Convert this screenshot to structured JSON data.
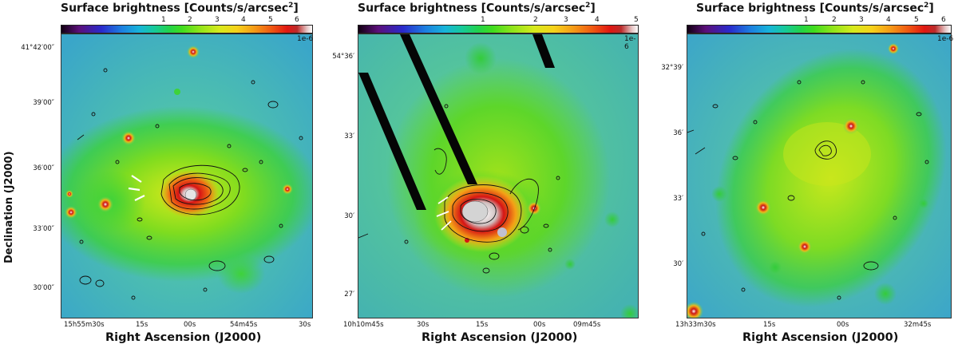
{
  "colorbar": {
    "title": "Surface brightness [Counts/s/arcsec",
    "title_sup": "2",
    "title_close": "]",
    "exponent": "1e-6",
    "colormap": "purple-blue-cyan-green-yellow-orange-red-white"
  },
  "panels": [
    {
      "colorbar_ticks": [
        "1",
        "2",
        "3",
        "4",
        "5",
        "6"
      ],
      "colorbar_max": 6,
      "y_ticks": [
        "41°42′00″",
        "39′00″",
        "36′00″",
        "33′00″",
        "30′00″"
      ],
      "x_ticks": [
        "15h55m30s",
        "15s",
        "00s",
        "54m45s",
        "30s"
      ],
      "x_title": "Right Ascension (J2000)",
      "y_title": "Declination (J2000)"
    },
    {
      "colorbar_ticks": [
        "1",
        "2",
        "3",
        "4",
        "5"
      ],
      "colorbar_max": 5,
      "y_ticks": [
        "54°36′",
        "33′",
        "30′",
        "27′"
      ],
      "x_ticks": [
        "10h10m45s",
        "30s",
        "15s",
        "00s",
        "09m45s"
      ],
      "x_title": "Right Ascension (J2000)"
    },
    {
      "colorbar_ticks": [
        "1",
        "2",
        "3",
        "4",
        "5",
        "6"
      ],
      "colorbar_max": 6,
      "y_ticks": [
        "32°39′",
        "36′",
        "33′",
        "30′"
      ],
      "x_ticks": [
        "13h33m30s",
        "15s",
        "00s",
        "32m45s"
      ],
      "x_title": "Right Ascension (J2000)"
    }
  ]
}
